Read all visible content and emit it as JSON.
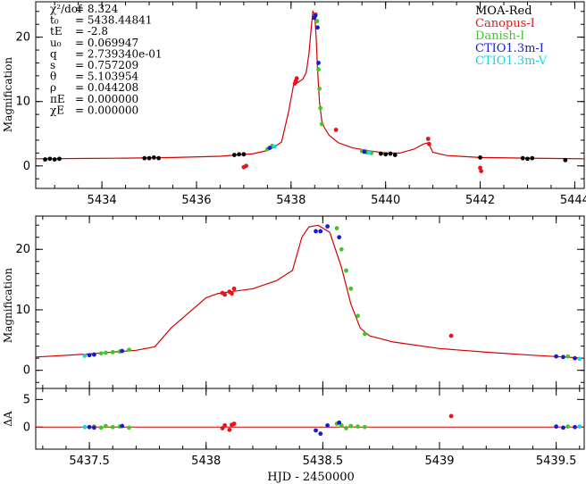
{
  "chart_data": [
    {
      "type": "scatter",
      "panel": "top",
      "ylabel": "Magnification",
      "xlim": [
        5432.6,
        5444.2
      ],
      "ylim": [
        -3.5,
        25.5
      ],
      "xticks": [
        5434,
        5436,
        5438,
        5440,
        5442,
        5444
      ],
      "yticks": [
        0,
        10,
        20
      ],
      "model_color": "#d40000",
      "params": [
        {
          "label": "χ²/dof",
          "value": "= 8.324"
        },
        {
          "label": "t₀",
          "value": "= 5438.44841"
        },
        {
          "label": "tE",
          "value": "= -2.8"
        },
        {
          "label": "u₀",
          "value": "= 0.069947"
        },
        {
          "label": "q",
          "value": "= 2.739340e-01"
        },
        {
          "label": "s",
          "value": "= 0.757209"
        },
        {
          "label": "θ",
          "value": "= 5.103954"
        },
        {
          "label": "ρ",
          "value": "= 0.044208"
        },
        {
          "label": "πE",
          "value": "= 0.000000"
        },
        {
          "label": "χE",
          "value": "= 0.000000"
        }
      ],
      "legend": [
        {
          "name": "MOA-Red",
          "color": "#000000"
        },
        {
          "name": "Canopus-I",
          "color": "#e8141b"
        },
        {
          "name": "Danish-I",
          "color": "#3cc928"
        },
        {
          "name": "CTIO1.3m-I",
          "color": "#1a1ad6"
        },
        {
          "name": "CTIO1.3m-V",
          "color": "#10d8e8"
        }
      ],
      "model": {
        "x": [
          5432.6,
          5433.5,
          5434.5,
          5435.5,
          5436.5,
          5437.2,
          5437.5,
          5437.7,
          5437.8,
          5437.95,
          5438.05,
          5438.15,
          5438.25,
          5438.32,
          5438.38,
          5438.42,
          5438.46,
          5438.5,
          5438.53,
          5438.56,
          5438.6,
          5438.65,
          5438.7,
          5438.8,
          5439.0,
          5439.3,
          5439.7,
          5440.0,
          5440.3,
          5440.6,
          5440.8,
          5440.9,
          5441.0,
          5441.3,
          5442.0,
          5443.0,
          5444.2
        ],
        "y": [
          1.1,
          1.15,
          1.2,
          1.3,
          1.5,
          1.9,
          2.4,
          3.2,
          3.7,
          8.5,
          12.5,
          13.0,
          13.5,
          14.5,
          17.5,
          21.0,
          24.0,
          23.5,
          20.0,
          15.0,
          10.0,
          7.0,
          6.0,
          4.8,
          3.6,
          2.8,
          2.3,
          2.0,
          2.0,
          2.6,
          3.4,
          3.6,
          2.1,
          1.6,
          1.3,
          1.2,
          1.1
        ]
      },
      "series": [
        {
          "name": "MOA-Red",
          "x": [
            5432.8,
            5432.9,
            5433.0,
            5433.1,
            5434.9,
            5435.0,
            5435.1,
            5435.2,
            5436.8,
            5436.9,
            5437.0,
            5439.9,
            5440.0,
            5440.1,
            5440.2,
            5442.0,
            5442.9,
            5443.0,
            5443.1,
            5443.8
          ],
          "y": [
            1.0,
            1.1,
            1.0,
            1.1,
            1.2,
            1.2,
            1.3,
            1.2,
            1.7,
            1.8,
            1.8,
            1.9,
            1.8,
            1.9,
            1.7,
            1.3,
            1.2,
            1.1,
            1.2,
            0.9
          ]
        },
        {
          "name": "Canopus-I",
          "x": [
            5437.0,
            5437.05,
            5438.08,
            5438.1,
            5438.12,
            5438.52,
            5438.95,
            5440.9,
            5440.92,
            5442.0,
            5442.02
          ],
          "y": [
            -0.2,
            0.0,
            12.8,
            13.2,
            13.6,
            23.5,
            5.6,
            4.2,
            3.4,
            -0.3,
            -0.8
          ]
        },
        {
          "name": "Danish-I",
          "x": [
            5437.5,
            5437.6,
            5438.55,
            5438.58,
            5438.6,
            5438.62,
            5438.65,
            5439.5,
            5439.6,
            5439.7
          ],
          "y": [
            2.6,
            3.1,
            22.5,
            15.0,
            12.0,
            9.0,
            6.5,
            2.3,
            2.1,
            2.0
          ]
        },
        {
          "name": "CTIO1.3m-I",
          "x": [
            5437.55,
            5438.49,
            5438.51,
            5438.56,
            5438.58,
            5439.55
          ],
          "y": [
            2.8,
            23.0,
            23.3,
            21.5,
            16.0,
            2.2
          ]
        },
        {
          "name": "CTIO1.3m-V",
          "x": [
            5437.65,
            5439.65
          ],
          "y": [
            3.0,
            2.1
          ]
        }
      ]
    },
    {
      "type": "scatter",
      "panel": "zoom",
      "ylabel": "Magnification",
      "xlim": [
        5437.27,
        5439.62
      ],
      "ylim": [
        -3,
        25.5
      ],
      "xticks": [
        5437.5,
        5438,
        5438.5,
        5439,
        5439.5
      ],
      "xticklabels": [
        "5437.5",
        "5438",
        "5438.5",
        "5439",
        "5439.5"
      ],
      "yticks": [
        0,
        10,
        20
      ],
      "model": {
        "x": [
          5437.27,
          5437.5,
          5437.7,
          5437.78,
          5437.85,
          5438.0,
          5438.05,
          5438.2,
          5438.3,
          5438.37,
          5438.41,
          5438.44,
          5438.48,
          5438.53,
          5438.58,
          5438.62,
          5438.66,
          5438.7,
          5438.8,
          5439.0,
          5439.2,
          5439.4,
          5439.62
        ],
        "y": [
          2.2,
          2.7,
          3.3,
          3.9,
          7.0,
          12.0,
          12.7,
          13.5,
          14.8,
          16.5,
          22.0,
          23.7,
          24.0,
          22.8,
          17.0,
          11.0,
          7.0,
          5.7,
          4.7,
          3.6,
          3.0,
          2.5,
          2.0
        ]
      },
      "series": [
        {
          "name": "Canopus-I",
          "x": [
            5438.07,
            5438.08,
            5438.1,
            5438.11,
            5438.12,
            5439.05
          ],
          "y": [
            12.8,
            12.5,
            13.0,
            12.7,
            13.5,
            5.7
          ]
        },
        {
          "name": "Danish-I",
          "x": [
            5437.52,
            5437.55,
            5437.57,
            5437.6,
            5437.63,
            5437.67,
            5438.56,
            5438.58,
            5438.6,
            5438.62,
            5438.65,
            5438.68,
            5439.55
          ],
          "y": [
            2.6,
            2.8,
            2.9,
            3.0,
            3.1,
            3.4,
            23.5,
            20.0,
            16.5,
            13.5,
            9.0,
            6.0,
            2.3
          ]
        },
        {
          "name": "CTIO1.3m-I",
          "x": [
            5437.5,
            5437.52,
            5437.64,
            5438.47,
            5438.49,
            5438.52,
            5438.57,
            5439.5,
            5439.53,
            5439.58
          ],
          "y": [
            2.5,
            2.6,
            3.2,
            23.0,
            23.0,
            23.8,
            22.0,
            2.3,
            2.2,
            2.0
          ]
        },
        {
          "name": "CTIO1.3m-V",
          "x": [
            5437.48,
            5439.6
          ],
          "y": [
            2.4,
            1.9
          ]
        }
      ]
    },
    {
      "type": "scatter",
      "panel": "residuals",
      "ylabel": "ΔA",
      "xlabel": "HJD - 2450000",
      "xlim": [
        5437.27,
        5439.62
      ],
      "ylim": [
        -4,
        7
      ],
      "yticks": [
        0,
        5
      ],
      "series": [
        {
          "name": "Canopus-I",
          "x": [
            5438.07,
            5438.08,
            5438.1,
            5438.11,
            5438.12,
            5439.05
          ],
          "y": [
            -0.2,
            0.3,
            -0.5,
            0.4,
            0.6,
            2.0
          ]
        },
        {
          "name": "Danish-I",
          "x": [
            5437.52,
            5437.55,
            5437.57,
            5437.6,
            5437.63,
            5437.67,
            5438.56,
            5438.58,
            5438.6,
            5438.62,
            5438.65,
            5438.68,
            5439.55
          ],
          "y": [
            0.1,
            -0.1,
            0.2,
            0.0,
            0.1,
            -0.1,
            0.6,
            0.3,
            -0.2,
            0.2,
            0.1,
            0.0,
            0.1
          ]
        },
        {
          "name": "CTIO1.3m-I",
          "x": [
            5437.5,
            5437.52,
            5437.64,
            5438.47,
            5438.49,
            5438.52,
            5438.57,
            5439.5,
            5439.53,
            5439.58
          ],
          "y": [
            0.0,
            -0.1,
            0.2,
            -0.6,
            -1.2,
            0.3,
            0.8,
            0.1,
            -0.1,
            0.0
          ]
        },
        {
          "name": "CTIO1.3m-V",
          "x": [
            5437.48,
            5439.6
          ],
          "y": [
            0.0,
            0.1
          ]
        }
      ]
    }
  ]
}
